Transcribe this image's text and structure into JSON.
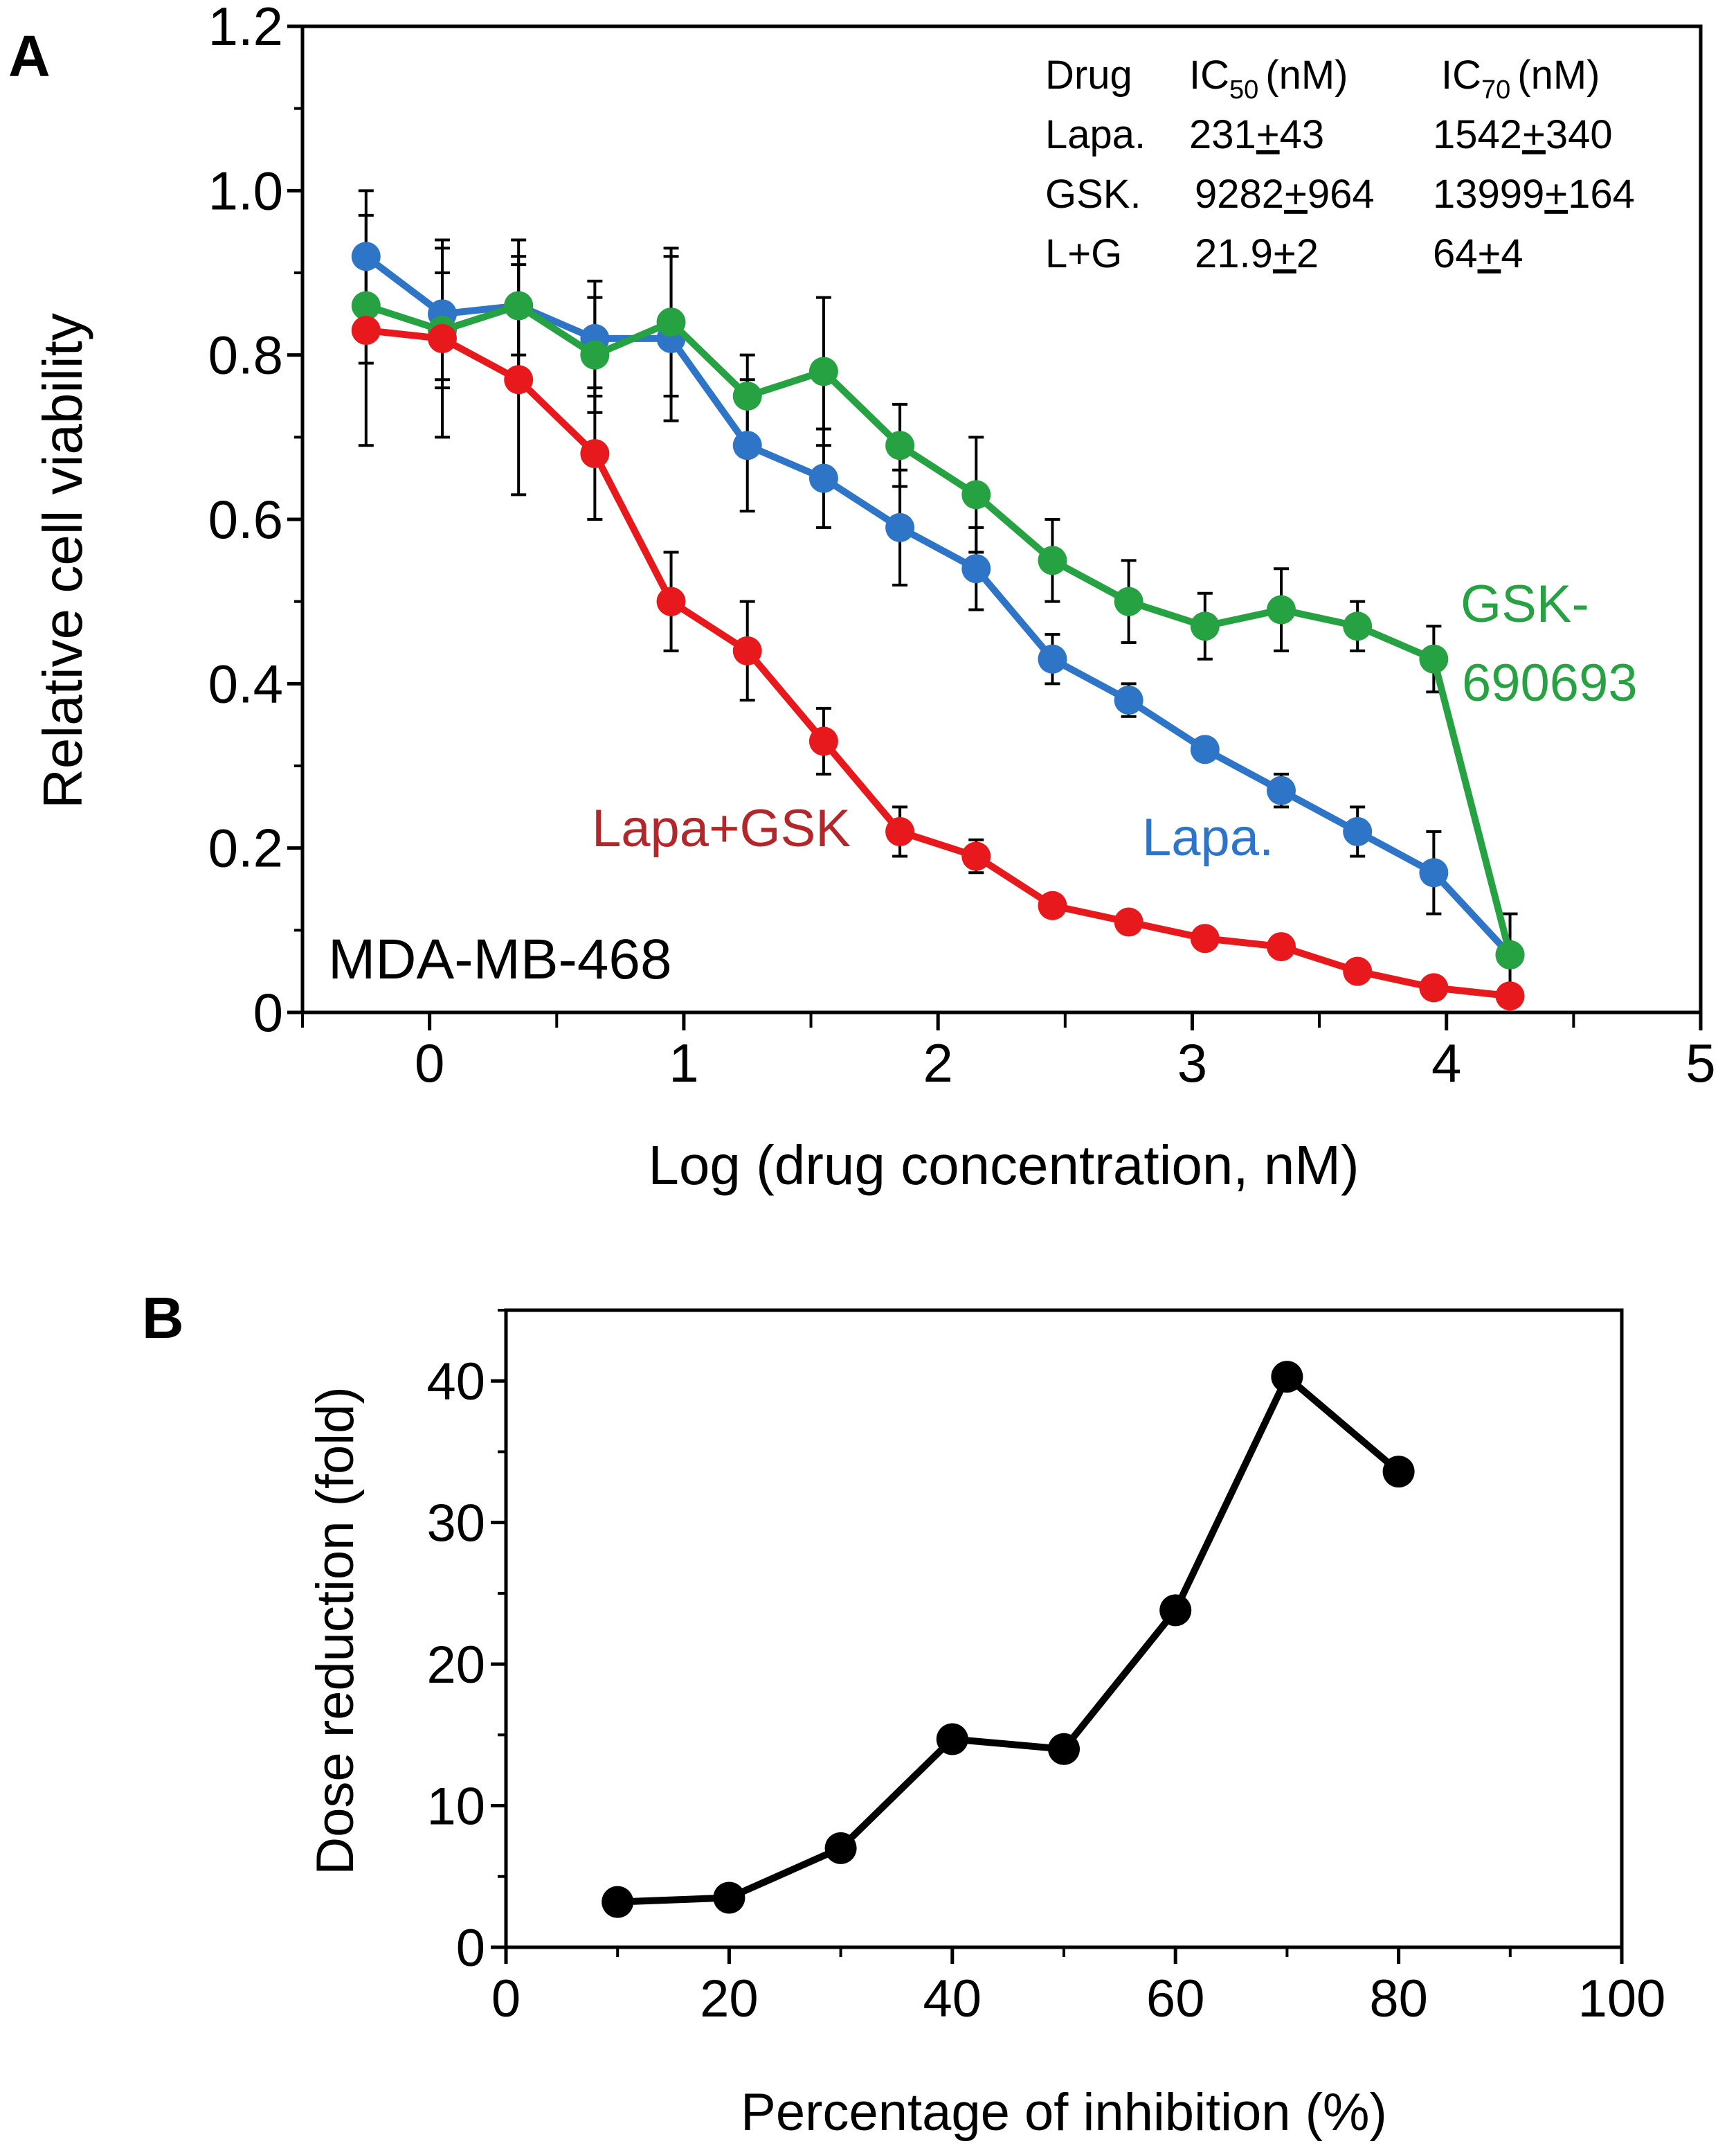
{
  "panels": [
    {
      "label": "A"
    },
    {
      "label": "B"
    }
  ],
  "chart_data": [
    {
      "type": "line",
      "panel": "A",
      "xlabel": "Log (drug concentration, nM)",
      "ylabel": "Relative cell viability",
      "xlim": [
        -0.5,
        5
      ],
      "ylim": [
        0,
        1.2
      ],
      "xticks": [
        0,
        1,
        2,
        3,
        4,
        5
      ],
      "xtick_labels": [
        "0",
        "1",
        "2",
        "3",
        "4",
        "5"
      ],
      "yticks": [
        0,
        0.2,
        0.4,
        0.6,
        0.8,
        1.0,
        1.2
      ],
      "ytick_labels": [
        "0",
        "0.2",
        "0.4",
        "0.6",
        "0.8",
        "1.0",
        "1.2"
      ],
      "x": [
        -0.25,
        0.05,
        0.35,
        0.65,
        0.95,
        1.25,
        1.55,
        1.85,
        2.15,
        2.45,
        2.75,
        3.05,
        3.35,
        3.65,
        3.95,
        4.25
      ],
      "series": [
        {
          "name": "Lapa.",
          "color": "#2e75c7",
          "values": [
            0.92,
            0.85,
            0.86,
            0.82,
            0.82,
            0.69,
            0.65,
            0.59,
            0.54,
            0.43,
            0.38,
            0.32,
            0.27,
            0.22,
            0.17,
            0.07
          ],
          "errors": [
            0.08,
            0.08,
            0.08,
            0.07,
            0.1,
            0.08,
            0.06,
            0.07,
            0.05,
            0.03,
            0.02,
            0.01,
            0.02,
            0.03,
            0.05,
            0.01
          ]
        },
        {
          "name": "GSK-690693",
          "color": "#27a243",
          "values": [
            0.86,
            0.83,
            0.86,
            0.8,
            0.84,
            0.75,
            0.78,
            0.69,
            0.63,
            0.55,
            0.5,
            0.47,
            0.49,
            0.47,
            0.43,
            0.07
          ],
          "errors": [
            0.07,
            0.07,
            0.06,
            0.07,
            0.09,
            0.05,
            0.09,
            0.05,
            0.07,
            0.05,
            0.05,
            0.04,
            0.05,
            0.03,
            0.04,
            0.05
          ]
        },
        {
          "name": "Lapa+GSK",
          "color": "#e8191c",
          "values": [
            0.83,
            0.82,
            0.77,
            0.68,
            0.5,
            0.44,
            0.33,
            0.22,
            0.19,
            0.13,
            0.11,
            0.09,
            0.08,
            0.05,
            0.03,
            0.02
          ],
          "errors": [
            0.14,
            0.12,
            0.14,
            0.08,
            0.06,
            0.06,
            0.04,
            0.03,
            0.02,
            0.01,
            0.01,
            0.01,
            0.01,
            0.01,
            0.01,
            0.01
          ]
        }
      ],
      "series_labels": [
        {
          "text": "GSK-",
          "color": "#27a243"
        },
        {
          "text": "690693",
          "color": "#27a243"
        },
        {
          "text": "Lapa.",
          "color": "#2e75c7"
        },
        {
          "text": "Lapa+GSK",
          "color": "#b3272b"
        }
      ],
      "cell_line": "MDA-MB-468",
      "table": {
        "header": {
          "drug": "Drug",
          "ic50_base": "IC",
          "ic50_sub": "50",
          "ic50_unit": "(nM)",
          "ic70_base": "IC",
          "ic70_sub": "70",
          "ic70_unit": "(nM)"
        },
        "rows": [
          {
            "drug": "Lapa.",
            "ic50_val": "231",
            "ic50_pm": "+",
            "ic50_err": "43",
            "ic70_val": "1542",
            "ic70_pm": "+",
            "ic70_err": "340"
          },
          {
            "drug": "GSK.",
            "ic50_val": "9282",
            "ic50_pm": "+",
            "ic50_err": "964",
            "ic70_val": "13999",
            "ic70_pm": "+",
            "ic70_err": "164"
          },
          {
            "drug": "L+G",
            "ic50_val": "21.9",
            "ic50_pm": "+",
            "ic50_err": "2",
            "ic70_val": "64",
            "ic70_pm": "+",
            "ic70_err": "4"
          }
        ]
      }
    },
    {
      "type": "line",
      "panel": "B",
      "xlabel": "Percentage of inhibition (%)",
      "ylabel": "Dose reduction (fold)",
      "xlim": [
        0,
        100
      ],
      "ylim": [
        0,
        45
      ],
      "xticks": [
        0,
        20,
        40,
        60,
        80,
        100
      ],
      "xtick_labels": [
        "0",
        "20",
        "40",
        "60",
        "80",
        "100"
      ],
      "yticks": [
        0,
        10,
        20,
        30,
        40
      ],
      "ytick_labels": [
        "0",
        "10",
        "20",
        "30",
        "40"
      ],
      "x": [
        10,
        20,
        30,
        40,
        50,
        60,
        70,
        80
      ],
      "series": [
        {
          "name": "Dose reduction",
          "color": "#000000",
          "values": [
            3.2,
            3.5,
            7.0,
            14.7,
            14.0,
            23.8,
            40.3,
            33.6
          ]
        }
      ]
    }
  ]
}
